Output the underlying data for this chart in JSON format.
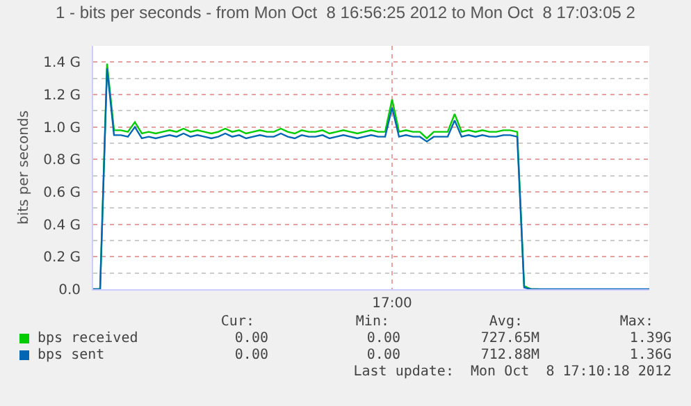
{
  "chart_data": {
    "type": "line",
    "title": "1 - bits per seconds - from Mon Oct  8 16:56:25 2012 to Mon Oct  8 17:03:05 2",
    "ylabel": "bits per seconds",
    "categories": [
      null,
      null,
      null,
      null,
      null,
      null,
      null,
      null,
      null,
      null,
      null,
      null,
      null,
      null,
      null,
      null,
      null,
      null,
      null,
      null,
      null,
      null,
      null,
      null,
      null,
      null,
      null,
      null,
      null,
      null,
      null,
      null,
      null,
      null,
      null,
      null,
      null,
      null,
      null,
      null,
      null,
      null,
      null,
      "17:00",
      null,
      null,
      null,
      null,
      null,
      null,
      null,
      null,
      null,
      null,
      null,
      null,
      null,
      null,
      null,
      null,
      null,
      null,
      null,
      null,
      null,
      null,
      null,
      null,
      null,
      null,
      null,
      null,
      null,
      null,
      null,
      null,
      null,
      null,
      null,
      null,
      null
    ],
    "series": [
      {
        "name": "bps received",
        "color": "#00cc00",
        "values": [
          0,
          0,
          1.39,
          0.98,
          0.98,
          0.97,
          1.03,
          0.96,
          0.97,
          0.96,
          0.97,
          0.98,
          0.97,
          0.99,
          0.97,
          0.98,
          0.97,
          0.96,
          0.97,
          0.99,
          0.97,
          0.98,
          0.96,
          0.97,
          0.98,
          0.97,
          0.97,
          0.99,
          0.97,
          0.96,
          0.98,
          0.97,
          0.97,
          0.98,
          0.96,
          0.97,
          0.98,
          0.97,
          0.96,
          0.97,
          0.98,
          0.97,
          0.97,
          1.17,
          0.97,
          0.98,
          0.97,
          0.97,
          0.93,
          0.97,
          0.97,
          0.97,
          1.08,
          0.97,
          0.98,
          0.97,
          0.98,
          0.97,
          0.97,
          0.98,
          0.98,
          0.97,
          0.02,
          0,
          0,
          null,
          null,
          null,
          null,
          null,
          null,
          null,
          null,
          null,
          null,
          null,
          null,
          null,
          null,
          null,
          null
        ]
      },
      {
        "name": "bps sent",
        "color": "#0066b3",
        "values": [
          0,
          0,
          1.36,
          0.95,
          0.95,
          0.94,
          1.0,
          0.93,
          0.94,
          0.93,
          0.94,
          0.95,
          0.94,
          0.96,
          0.94,
          0.95,
          0.94,
          0.93,
          0.94,
          0.96,
          0.94,
          0.95,
          0.93,
          0.94,
          0.95,
          0.94,
          0.94,
          0.96,
          0.94,
          0.93,
          0.95,
          0.94,
          0.94,
          0.95,
          0.93,
          0.94,
          0.95,
          0.94,
          0.93,
          0.94,
          0.95,
          0.94,
          0.94,
          1.12,
          0.94,
          0.95,
          0.94,
          0.94,
          0.91,
          0.94,
          0.94,
          0.94,
          1.04,
          0.94,
          0.95,
          0.94,
          0.95,
          0.94,
          0.94,
          0.95,
          0.95,
          0.94,
          0.01,
          0,
          0,
          0,
          0,
          0,
          0,
          0,
          0,
          0,
          0,
          0,
          0,
          0,
          0,
          0,
          0,
          0,
          0
        ]
      }
    ],
    "ylim": [
      0,
      1.5
    ],
    "yticks": [
      {
        "value": 0,
        "label": "0.0"
      },
      {
        "value": 0.1,
        "label": null
      },
      {
        "value": 0.2,
        "label": "0.2 G"
      },
      {
        "value": 0.3,
        "label": null
      },
      {
        "value": 0.4,
        "label": "0.4 G"
      },
      {
        "value": 0.5,
        "label": null
      },
      {
        "value": 0.6,
        "label": "0.6 G"
      },
      {
        "value": 0.7,
        "label": null
      },
      {
        "value": 0.8,
        "label": "0.8 G"
      },
      {
        "value": 0.9,
        "label": null
      },
      {
        "value": 1.0,
        "label": "1.0 G"
      },
      {
        "value": 1.1,
        "label": null
      },
      {
        "value": 1.2,
        "label": "1.2 G"
      },
      {
        "value": 1.3,
        "label": null
      },
      {
        "value": 1.4,
        "label": "1.4 G"
      }
    ],
    "grid": true,
    "legend": "bottom",
    "marker": "none",
    "line_style": "solid",
    "annotations": [
      "Cur:",
      "Min:",
      "Avg:",
      "Max:",
      "0.00",
      "0.00",
      "727.65M",
      "1.39G",
      "0.00",
      "0.00",
      "712.88M",
      "1.36G",
      "Last update:  Mon Oct  8 17:10:18 2012"
    ]
  }
}
